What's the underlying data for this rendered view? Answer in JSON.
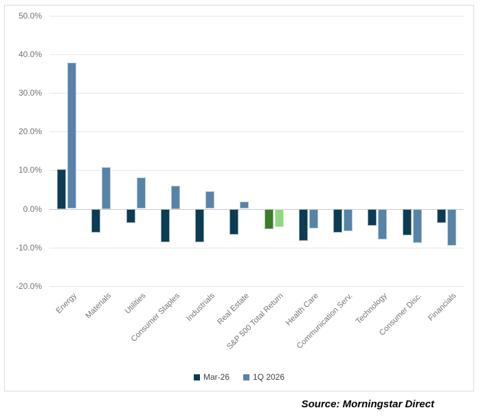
{
  "source_note": "Source: Morningstar Direct",
  "colors": {
    "mar26": "#0C3B54",
    "q1": "#5783A8",
    "mar26_highlight": "#3B7B2A",
    "q1_highlight": "#92D77E",
    "gridline": "#E5E5E5",
    "zero_line": "#C9C9C9",
    "axis_label": "#717171",
    "category_label": "#757575",
    "legend_text": "#404040",
    "frame_border": "#D9D9D9"
  },
  "chart_data": {
    "type": "bar",
    "title": "",
    "xlabel": "",
    "ylabel": "",
    "grid": true,
    "legend_position": "bottom",
    "highlight_category": "S&P 500 Total Return",
    "categories": [
      "Energy",
      "Materials",
      "Utilities",
      "Consumer Staples",
      "Industrials",
      "Real Estate",
      "S&P 500 Total Return",
      "Health Care",
      "Communication Serv.",
      "Technology",
      "Consumer Disc.",
      "Financials"
    ],
    "series": [
      {
        "name": "Mar-26",
        "color_key": "mar26",
        "highlight_color_key": "mar26_highlight",
        "values": [
          10.3,
          -6.1,
          -3.5,
          -8.5,
          -8.6,
          -6.5,
          -5.1,
          -8.2,
          -6.1,
          -4.3,
          -6.8,
          -3.6
        ]
      },
      {
        "name": "1Q 2026",
        "color_key": "q1",
        "highlight_color_key": "q1_highlight",
        "values": [
          37.8,
          10.8,
          8.1,
          6.0,
          4.5,
          1.8,
          -4.6,
          -5.0,
          -5.7,
          -7.9,
          -8.8,
          -9.5
        ]
      }
    ],
    "y_axis": {
      "ylim": [
        -20,
        50
      ],
      "tick_step": 10,
      "format": "percent",
      "ticks": [
        {
          "label": "50.0%",
          "value": 50
        },
        {
          "label": "40.0%",
          "value": 40
        },
        {
          "label": "30.0%",
          "value": 30
        },
        {
          "label": "20.0%",
          "value": 20
        },
        {
          "label": "10.0%",
          "value": 10
        },
        {
          "label": "0.0%",
          "value": 0
        },
        {
          "label": "-10.0%",
          "value": -10
        },
        {
          "label": "-20.0%",
          "value": -20
        }
      ]
    }
  }
}
